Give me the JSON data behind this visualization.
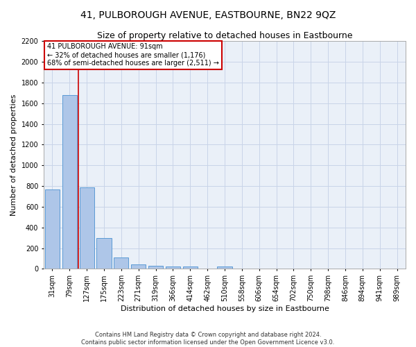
{
  "title": "41, PULBOROUGH AVENUE, EASTBOURNE, BN22 9QZ",
  "subtitle": "Size of property relative to detached houses in Eastbourne",
  "xlabel": "Distribution of detached houses by size in Eastbourne",
  "ylabel": "Number of detached properties",
  "categories": [
    "31sqm",
    "79sqm",
    "127sqm",
    "175sqm",
    "223sqm",
    "271sqm",
    "319sqm",
    "366sqm",
    "414sqm",
    "462sqm",
    "510sqm",
    "558sqm",
    "606sqm",
    "654sqm",
    "702sqm",
    "750sqm",
    "798sqm",
    "846sqm",
    "894sqm",
    "941sqm",
    "989sqm"
  ],
  "values": [
    770,
    1680,
    790,
    300,
    110,
    45,
    32,
    25,
    22,
    0,
    20,
    0,
    0,
    0,
    0,
    0,
    0,
    0,
    0,
    0,
    0
  ],
  "bar_color": "#aec6e8",
  "bar_edge_color": "#5b9bd5",
  "annotation_box_text": "41 PULBOROUGH AVENUE: 91sqm\n← 32% of detached houses are smaller (1,176)\n68% of semi-detached houses are larger (2,511) →",
  "annotation_box_color": "#ffffff",
  "annotation_box_edge_color": "#cc0000",
  "vline_color": "#cc0000",
  "vline_x": 1.5,
  "ylim": [
    0,
    2200
  ],
  "yticks": [
    0,
    200,
    400,
    600,
    800,
    1000,
    1200,
    1400,
    1600,
    1800,
    2000,
    2200
  ],
  "grid_color": "#c8d4e8",
  "bg_color": "#eaf0f8",
  "footer_line1": "Contains HM Land Registry data © Crown copyright and database right 2024.",
  "footer_line2": "Contains public sector information licensed under the Open Government Licence v3.0.",
  "title_fontsize": 10,
  "subtitle_fontsize": 9,
  "xlabel_fontsize": 8,
  "ylabel_fontsize": 8,
  "tick_fontsize": 7,
  "annotation_fontsize": 7
}
